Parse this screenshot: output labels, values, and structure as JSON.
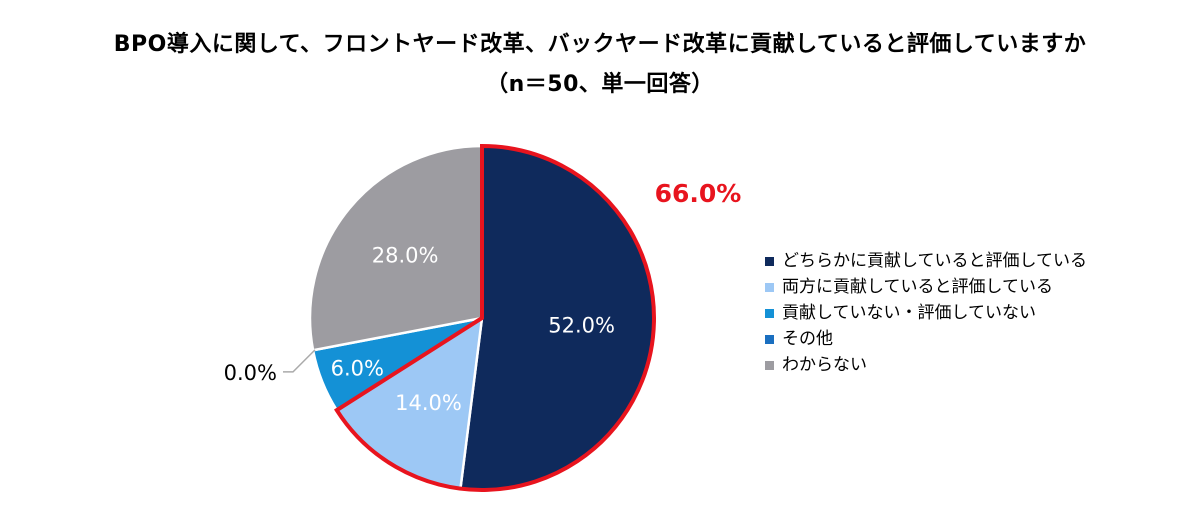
{
  "title": {
    "line1": "BPO導入に関して、フロントヤード改革、バックヤード改革に貢献していると評価していますか",
    "line2": "（n＝50、単一回答）"
  },
  "chart_data": {
    "type": "pie",
    "title": "BPO導入に関して、フロントヤード改革、バックヤード改革に貢献していると評価していますか（n＝50、単一回答）",
    "categories": [
      "どちらかに貢献していると評価している",
      "両方に貢献していると評価している",
      "貢献していない・評価していない",
      "その他",
      "わからない"
    ],
    "values": [
      52.0,
      14.0,
      6.0,
      0.0,
      28.0
    ],
    "labels": [
      "52.0%",
      "14.0%",
      "6.0%",
      "0.0%",
      "28.0%"
    ],
    "colors": [
      "#0f2a5c",
      "#9dc8f5",
      "#1491d6",
      "#1a6fc0",
      "#9d9ca1"
    ],
    "label_colors": [
      "#ffffff",
      "#ffffff",
      "#ffffff",
      "#000000",
      "#ffffff"
    ],
    "highlight": {
      "text": "66.0%",
      "color": "#e8141e",
      "includes": [
        "どちらかに貢献していると評価している",
        "両方に貢献していると評価している"
      ]
    },
    "legend_position": "right"
  }
}
